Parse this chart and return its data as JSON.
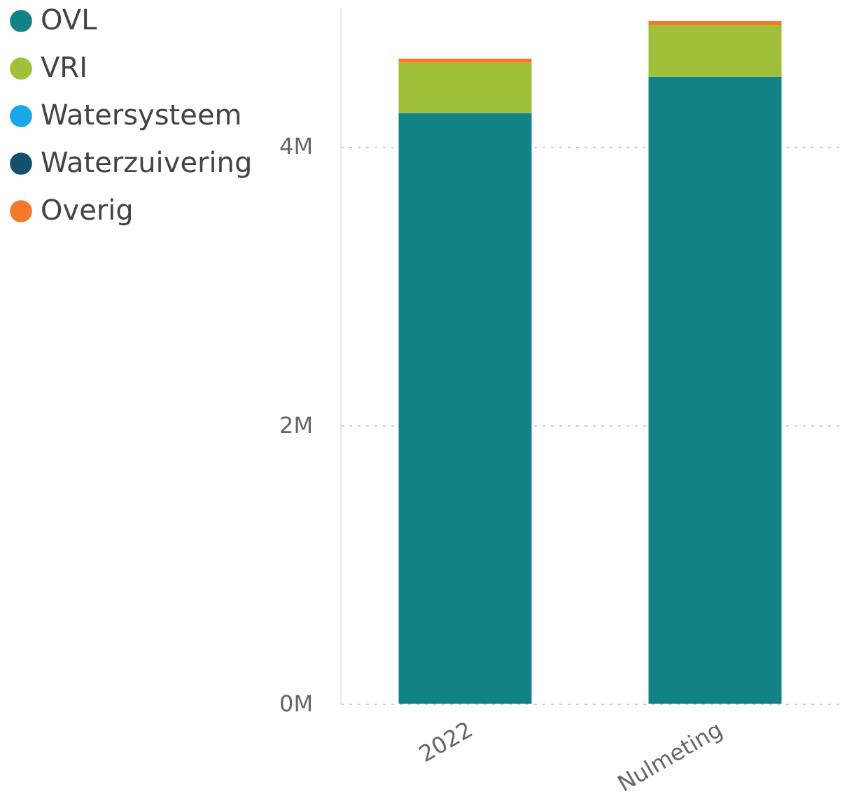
{
  "chart_data": {
    "type": "bar",
    "stacked": true,
    "categories": [
      "2022",
      "Nulmeting"
    ],
    "series": [
      {
        "name": "OVL",
        "color": "#118286",
        "values": [
          4240000,
          4500000
        ]
      },
      {
        "name": "VRI",
        "color": "#a0c03a",
        "values": [
          360000,
          370000
        ]
      },
      {
        "name": "Watersysteem",
        "color": "#1aa7e8",
        "values": [
          0,
          0
        ]
      },
      {
        "name": "Waterzuivering",
        "color": "#144f6b",
        "values": [
          0,
          0
        ]
      },
      {
        "name": "Overig",
        "color": "#f47a2a",
        "values": [
          30000,
          30000
        ]
      }
    ],
    "ylim": [
      0,
      5000000
    ],
    "yticks": [
      {
        "value": 0,
        "label": "0M"
      },
      {
        "value": 2000000,
        "label": "2M"
      },
      {
        "value": 4000000,
        "label": "4M"
      }
    ],
    "grid": "y",
    "legend": "left"
  }
}
